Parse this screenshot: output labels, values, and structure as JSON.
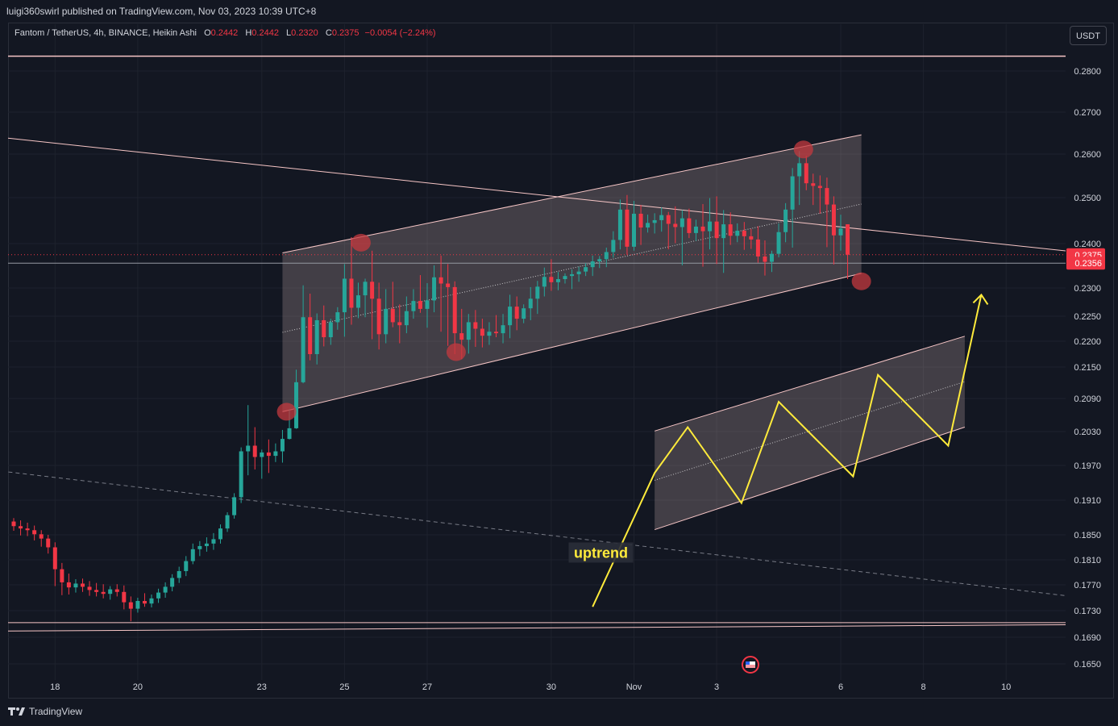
{
  "publisher_line": "luigi360swirl published on TradingView.com, Nov 03, 2023 10:39 UTC+8",
  "legend": {
    "symbol": "Fantom / TetherUS, 4h, BINANCE, Heikin Ashi",
    "o_label": "O",
    "o": "0.2442",
    "h_label": "H",
    "h": "0.2442",
    "l_label": "L",
    "l": "0.2320",
    "c_label": "C",
    "c": "0.2375",
    "change": "−0.0054 (−2.24%)"
  },
  "currency_button": "USDT",
  "brand": "TradingView",
  "annotation": "uptrend",
  "colors": {
    "up": "#26a69a",
    "down": "#f23645",
    "background": "#131722",
    "grid": "#1e222d",
    "channel_fill": "#ffdad8",
    "trendline": "#f7c6c6",
    "projection": "#ffeb3b",
    "highlight": "#c43a3f"
  },
  "chart_data": {
    "type": "candlestick",
    "xlabel": "",
    "ylabel": "",
    "x_ticks": [
      "18",
      "20",
      "23",
      "25",
      "27",
      "30",
      "Nov",
      "3",
      "6",
      "8",
      "10"
    ],
    "y_ticks": [
      "0.2800",
      "0.2700",
      "0.2600",
      "0.2500",
      "0.2400",
      "0.2300",
      "0.2250",
      "0.2200",
      "0.2150",
      "0.2090",
      "0.2030",
      "0.1970",
      "0.1910",
      "0.1850",
      "0.1810",
      "0.1770",
      "0.1730",
      "0.1690",
      "0.1650"
    ],
    "y_tick_values": [
      0.28,
      0.27,
      0.26,
      0.25,
      0.24,
      0.23,
      0.225,
      0.22,
      0.215,
      0.209,
      0.203,
      0.197,
      0.191,
      0.185,
      0.181,
      0.177,
      0.173,
      0.169,
      0.165
    ],
    "price_labels": [
      {
        "text": "0.2375",
        "value": 0.2375,
        "color": "#f23645"
      },
      {
        "text": "0.2356",
        "value": 0.2356,
        "color": "#f23645"
      }
    ],
    "candles": [
      {
        "x": 0.0,
        "open": 0.1873,
        "high": 0.1879,
        "low": 0.1857,
        "close": 0.1865
      },
      {
        "x": 0.167,
        "open": 0.1865,
        "high": 0.1875,
        "low": 0.1849,
        "close": 0.1861
      },
      {
        "x": 0.333,
        "open": 0.1861,
        "high": 0.1871,
        "low": 0.1848,
        "close": 0.1858
      },
      {
        "x": 0.5,
        "open": 0.1858,
        "high": 0.1866,
        "low": 0.1841,
        "close": 0.1851
      },
      {
        "x": 0.667,
        "open": 0.1851,
        "high": 0.1858,
        "low": 0.1831,
        "close": 0.1844
      },
      {
        "x": 0.833,
        "open": 0.1844,
        "high": 0.185,
        "low": 0.182,
        "close": 0.183
      },
      {
        "x": 1.0,
        "open": 0.183,
        "high": 0.1838,
        "low": 0.1768,
        "close": 0.1795
      },
      {
        "x": 1.167,
        "open": 0.1795,
        "high": 0.1805,
        "low": 0.1754,
        "close": 0.1774
      },
      {
        "x": 1.333,
        "open": 0.1774,
        "high": 0.1788,
        "low": 0.1755,
        "close": 0.1766
      },
      {
        "x": 1.5,
        "open": 0.1766,
        "high": 0.1779,
        "low": 0.1758,
        "close": 0.1772
      },
      {
        "x": 1.667,
        "open": 0.1772,
        "high": 0.178,
        "low": 0.1759,
        "close": 0.1767
      },
      {
        "x": 1.833,
        "open": 0.1767,
        "high": 0.1776,
        "low": 0.1753,
        "close": 0.1762
      },
      {
        "x": 2.0,
        "open": 0.1762,
        "high": 0.1773,
        "low": 0.1752,
        "close": 0.1759
      },
      {
        "x": 2.167,
        "open": 0.1759,
        "high": 0.1771,
        "low": 0.1749,
        "close": 0.1756
      },
      {
        "x": 2.333,
        "open": 0.1756,
        "high": 0.1768,
        "low": 0.1747,
        "close": 0.1763
      },
      {
        "x": 2.5,
        "open": 0.1763,
        "high": 0.1771,
        "low": 0.1752,
        "close": 0.1759
      },
      {
        "x": 2.667,
        "open": 0.1759,
        "high": 0.1769,
        "low": 0.1732,
        "close": 0.1743
      },
      {
        "x": 2.833,
        "open": 0.1743,
        "high": 0.1752,
        "low": 0.1714,
        "close": 0.1733
      },
      {
        "x": 3.0,
        "open": 0.1733,
        "high": 0.175,
        "low": 0.1727,
        "close": 0.1745
      },
      {
        "x": 3.167,
        "open": 0.1745,
        "high": 0.1757,
        "low": 0.1736,
        "close": 0.1741
      },
      {
        "x": 3.333,
        "open": 0.1741,
        "high": 0.1755,
        "low": 0.1735,
        "close": 0.1749
      },
      {
        "x": 3.5,
        "open": 0.1749,
        "high": 0.1764,
        "low": 0.1742,
        "close": 0.1758
      },
      {
        "x": 3.667,
        "open": 0.1758,
        "high": 0.1774,
        "low": 0.175,
        "close": 0.1767
      },
      {
        "x": 3.833,
        "open": 0.1767,
        "high": 0.1787,
        "low": 0.176,
        "close": 0.1781
      },
      {
        "x": 4.0,
        "open": 0.1781,
        "high": 0.1799,
        "low": 0.1773,
        "close": 0.1792
      },
      {
        "x": 4.167,
        "open": 0.1792,
        "high": 0.1816,
        "low": 0.1784,
        "close": 0.1808
      },
      {
        "x": 4.333,
        "open": 0.1808,
        "high": 0.1836,
        "low": 0.1803,
        "close": 0.1827
      },
      {
        "x": 4.5,
        "open": 0.1827,
        "high": 0.184,
        "low": 0.1816,
        "close": 0.1832
      },
      {
        "x": 4.667,
        "open": 0.1832,
        "high": 0.1846,
        "low": 0.1823,
        "close": 0.1836
      },
      {
        "x": 4.833,
        "open": 0.1836,
        "high": 0.1853,
        "low": 0.1826,
        "close": 0.1843
      },
      {
        "x": 5.0,
        "open": 0.1843,
        "high": 0.1868,
        "low": 0.1836,
        "close": 0.1861
      },
      {
        "x": 5.167,
        "open": 0.1861,
        "high": 0.1889,
        "low": 0.1855,
        "close": 0.1884
      },
      {
        "x": 5.333,
        "open": 0.1884,
        "high": 0.1922,
        "low": 0.1878,
        "close": 0.1915
      },
      {
        "x": 5.5,
        "open": 0.1915,
        "high": 0.2002,
        "low": 0.1905,
        "close": 0.1995
      },
      {
        "x": 5.667,
        "open": 0.1995,
        "high": 0.2078,
        "low": 0.1953,
        "close": 0.2005
      },
      {
        "x": 5.833,
        "open": 0.2005,
        "high": 0.2038,
        "low": 0.1963,
        "close": 0.1985
      },
      {
        "x": 6.0,
        "open": 0.1985,
        "high": 0.1998,
        "low": 0.1947,
        "close": 0.1993
      },
      {
        "x": 6.167,
        "open": 0.1993,
        "high": 0.2016,
        "low": 0.1957,
        "close": 0.1987
      },
      {
        "x": 6.333,
        "open": 0.1987,
        "high": 0.2009,
        "low": 0.1976,
        "close": 0.1995
      },
      {
        "x": 6.5,
        "open": 0.1995,
        "high": 0.2033,
        "low": 0.1975,
        "close": 0.2017
      },
      {
        "x": 6.667,
        "open": 0.2017,
        "high": 0.2071,
        "low": 0.2016,
        "close": 0.2036
      },
      {
        "x": 6.833,
        "open": 0.2036,
        "high": 0.2145,
        "low": 0.2035,
        "close": 0.2121
      },
      {
        "x": 7.0,
        "open": 0.2121,
        "high": 0.2306,
        "low": 0.2119,
        "close": 0.2248
      },
      {
        "x": 7.167,
        "open": 0.2248,
        "high": 0.229,
        "low": 0.2163,
        "close": 0.2175
      },
      {
        "x": 7.333,
        "open": 0.2175,
        "high": 0.2255,
        "low": 0.2155,
        "close": 0.2242
      },
      {
        "x": 7.5,
        "open": 0.2242,
        "high": 0.2269,
        "low": 0.219,
        "close": 0.2208
      },
      {
        "x": 7.667,
        "open": 0.2208,
        "high": 0.2245,
        "low": 0.2193,
        "close": 0.2238
      },
      {
        "x": 7.833,
        "open": 0.2238,
        "high": 0.2266,
        "low": 0.2223,
        "close": 0.2257
      },
      {
        "x": 8.0,
        "open": 0.2257,
        "high": 0.2354,
        "low": 0.2209,
        "close": 0.2321
      },
      {
        "x": 8.167,
        "open": 0.2321,
        "high": 0.2414,
        "low": 0.2233,
        "close": 0.2265
      },
      {
        "x": 8.333,
        "open": 0.2265,
        "high": 0.2312,
        "low": 0.2246,
        "close": 0.2287
      },
      {
        "x": 8.5,
        "open": 0.2287,
        "high": 0.2321,
        "low": 0.2248,
        "close": 0.2314
      },
      {
        "x": 8.667,
        "open": 0.2314,
        "high": 0.2384,
        "low": 0.2204,
        "close": 0.2281
      },
      {
        "x": 8.833,
        "open": 0.2281,
        "high": 0.2312,
        "low": 0.2184,
        "close": 0.2214
      },
      {
        "x": 9.0,
        "open": 0.2214,
        "high": 0.2298,
        "low": 0.2196,
        "close": 0.2263
      },
      {
        "x": 9.167,
        "open": 0.2263,
        "high": 0.2314,
        "low": 0.2228,
        "close": 0.2238
      },
      {
        "x": 9.333,
        "open": 0.2238,
        "high": 0.2271,
        "low": 0.2196,
        "close": 0.2232
      },
      {
        "x": 9.5,
        "open": 0.2232,
        "high": 0.2285,
        "low": 0.2216,
        "close": 0.2259
      },
      {
        "x": 9.667,
        "open": 0.2259,
        "high": 0.2298,
        "low": 0.2245,
        "close": 0.2277
      },
      {
        "x": 9.833,
        "open": 0.2277,
        "high": 0.2329,
        "low": 0.2256,
        "close": 0.2263
      },
      {
        "x": 10.0,
        "open": 0.2263,
        "high": 0.2311,
        "low": 0.2227,
        "close": 0.2278
      },
      {
        "x": 10.167,
        "open": 0.2278,
        "high": 0.2351,
        "low": 0.2257,
        "close": 0.2324
      },
      {
        "x": 10.333,
        "open": 0.2324,
        "high": 0.2373,
        "low": 0.2219,
        "close": 0.231
      },
      {
        "x": 10.5,
        "open": 0.231,
        "high": 0.2354,
        "low": 0.2191,
        "close": 0.2302
      },
      {
        "x": 10.667,
        "open": 0.2302,
        "high": 0.2315,
        "low": 0.2175,
        "close": 0.2216
      },
      {
        "x": 10.833,
        "open": 0.2216,
        "high": 0.2263,
        "low": 0.2165,
        "close": 0.2203
      },
      {
        "x": 11.0,
        "open": 0.2203,
        "high": 0.2254,
        "low": 0.2176,
        "close": 0.2238
      },
      {
        "x": 11.167,
        "open": 0.2238,
        "high": 0.2261,
        "low": 0.2189,
        "close": 0.2225
      },
      {
        "x": 11.333,
        "open": 0.2225,
        "high": 0.2245,
        "low": 0.2188,
        "close": 0.2211
      },
      {
        "x": 11.5,
        "open": 0.2211,
        "high": 0.2238,
        "low": 0.2193,
        "close": 0.2219
      },
      {
        "x": 11.667,
        "open": 0.2219,
        "high": 0.2252,
        "low": 0.2208,
        "close": 0.2216
      },
      {
        "x": 11.833,
        "open": 0.2216,
        "high": 0.2254,
        "low": 0.2196,
        "close": 0.2232
      },
      {
        "x": 12.0,
        "open": 0.2232,
        "high": 0.2288,
        "low": 0.2206,
        "close": 0.2267
      },
      {
        "x": 12.167,
        "open": 0.2267,
        "high": 0.2285,
        "low": 0.2222,
        "close": 0.2245
      },
      {
        "x": 12.333,
        "open": 0.2245,
        "high": 0.2271,
        "low": 0.2236,
        "close": 0.2264
      },
      {
        "x": 12.5,
        "open": 0.2264,
        "high": 0.2302,
        "low": 0.2242,
        "close": 0.2281
      },
      {
        "x": 12.667,
        "open": 0.2281,
        "high": 0.2316,
        "low": 0.2254,
        "close": 0.2303
      },
      {
        "x": 12.833,
        "open": 0.2303,
        "high": 0.2346,
        "low": 0.2285,
        "close": 0.2325
      },
      {
        "x": 13.0,
        "open": 0.2325,
        "high": 0.2365,
        "low": 0.2295,
        "close": 0.2313
      },
      {
        "x": 13.167,
        "open": 0.2313,
        "high": 0.2336,
        "low": 0.2296,
        "close": 0.232
      },
      {
        "x": 13.333,
        "open": 0.232,
        "high": 0.2333,
        "low": 0.231,
        "close": 0.2327
      },
      {
        "x": 13.5,
        "open": 0.2327,
        "high": 0.2342,
        "low": 0.2298,
        "close": 0.2331
      },
      {
        "x": 13.667,
        "open": 0.2331,
        "high": 0.2348,
        "low": 0.2314,
        "close": 0.2337
      },
      {
        "x": 13.833,
        "open": 0.2337,
        "high": 0.2356,
        "low": 0.2327,
        "close": 0.2347
      },
      {
        "x": 14.0,
        "open": 0.2347,
        "high": 0.2373,
        "low": 0.2327,
        "close": 0.236
      },
      {
        "x": 14.167,
        "open": 0.236,
        "high": 0.2372,
        "low": 0.2345,
        "close": 0.2365
      },
      {
        "x": 14.333,
        "open": 0.2365,
        "high": 0.2391,
        "low": 0.2347,
        "close": 0.2381
      },
      {
        "x": 14.5,
        "open": 0.2381,
        "high": 0.2427,
        "low": 0.2368,
        "close": 0.2408
      },
      {
        "x": 14.667,
        "open": 0.2408,
        "high": 0.2496,
        "low": 0.2387,
        "close": 0.2474
      },
      {
        "x": 14.833,
        "open": 0.2474,
        "high": 0.2506,
        "low": 0.2375,
        "close": 0.2393
      },
      {
        "x": 15.0,
        "open": 0.2393,
        "high": 0.2493,
        "low": 0.2384,
        "close": 0.2465
      },
      {
        "x": 15.167,
        "open": 0.2465,
        "high": 0.2484,
        "low": 0.2397,
        "close": 0.2435
      },
      {
        "x": 15.333,
        "open": 0.2435,
        "high": 0.2463,
        "low": 0.2424,
        "close": 0.2445
      },
      {
        "x": 15.5,
        "open": 0.2445,
        "high": 0.2466,
        "low": 0.2422,
        "close": 0.2451
      },
      {
        "x": 15.667,
        "open": 0.2451,
        "high": 0.2479,
        "low": 0.2426,
        "close": 0.2462
      },
      {
        "x": 15.833,
        "open": 0.2462,
        "high": 0.2469,
        "low": 0.2387,
        "close": 0.2443
      },
      {
        "x": 16.0,
        "open": 0.2443,
        "high": 0.2481,
        "low": 0.2401,
        "close": 0.2436
      },
      {
        "x": 16.167,
        "open": 0.2436,
        "high": 0.2473,
        "low": 0.2351,
        "close": 0.2455
      },
      {
        "x": 16.333,
        "open": 0.2455,
        "high": 0.2476,
        "low": 0.2412,
        "close": 0.2423
      },
      {
        "x": 16.5,
        "open": 0.2423,
        "high": 0.2452,
        "low": 0.2406,
        "close": 0.2437
      },
      {
        "x": 16.667,
        "open": 0.2437,
        "high": 0.2486,
        "low": 0.2348,
        "close": 0.2427
      },
      {
        "x": 16.833,
        "open": 0.2427,
        "high": 0.2499,
        "low": 0.2387,
        "close": 0.2448
      },
      {
        "x": 17.0,
        "open": 0.2448,
        "high": 0.2503,
        "low": 0.2354,
        "close": 0.2412
      },
      {
        "x": 17.167,
        "open": 0.2412,
        "high": 0.2473,
        "low": 0.2334,
        "close": 0.2442
      },
      {
        "x": 17.333,
        "open": 0.2442,
        "high": 0.2468,
        "low": 0.2397,
        "close": 0.2417
      },
      {
        "x": 17.5,
        "open": 0.2417,
        "high": 0.2444,
        "low": 0.2403,
        "close": 0.2428
      },
      {
        "x": 17.667,
        "open": 0.2428,
        "high": 0.2447,
        "low": 0.2386,
        "close": 0.2416
      },
      {
        "x": 17.833,
        "open": 0.2416,
        "high": 0.2432,
        "low": 0.2388,
        "close": 0.2409
      },
      {
        "x": 18.0,
        "open": 0.2409,
        "high": 0.2438,
        "low": 0.2357,
        "close": 0.2371
      },
      {
        "x": 18.167,
        "open": 0.2371,
        "high": 0.2407,
        "low": 0.2328,
        "close": 0.2359
      },
      {
        "x": 18.333,
        "open": 0.2359,
        "high": 0.2384,
        "low": 0.2336,
        "close": 0.2377
      },
      {
        "x": 18.5,
        "open": 0.2377,
        "high": 0.2444,
        "low": 0.2369,
        "close": 0.2425
      },
      {
        "x": 18.667,
        "open": 0.2425,
        "high": 0.2488,
        "low": 0.2403,
        "close": 0.2474
      },
      {
        "x": 18.833,
        "open": 0.2474,
        "high": 0.2568,
        "low": 0.2391,
        "close": 0.2549
      },
      {
        "x": 19.0,
        "open": 0.2549,
        "high": 0.2607,
        "low": 0.2484,
        "close": 0.2579
      },
      {
        "x": 19.167,
        "open": 0.2579,
        "high": 0.2596,
        "low": 0.2517,
        "close": 0.2533
      },
      {
        "x": 19.333,
        "open": 0.2533,
        "high": 0.2555,
        "low": 0.2484,
        "close": 0.2527
      },
      {
        "x": 19.5,
        "open": 0.2527,
        "high": 0.2551,
        "low": 0.2465,
        "close": 0.2522
      },
      {
        "x": 19.667,
        "open": 0.2522,
        "high": 0.2546,
        "low": 0.2392,
        "close": 0.2485
      },
      {
        "x": 19.833,
        "open": 0.2485,
        "high": 0.2503,
        "low": 0.2353,
        "close": 0.2418
      },
      {
        "x": 20.0,
        "open": 0.2418,
        "high": 0.2463,
        "low": 0.2384,
        "close": 0.2433
      },
      {
        "x": 20.167,
        "open": 0.2442,
        "high": 0.2442,
        "low": 0.232,
        "close": 0.2375
      }
    ]
  },
  "drawings": {
    "channel_main": {
      "p1": {
        "x": 6.5,
        "y": 0.2066
      },
      "p2": {
        "x": 20.5,
        "y": 0.2333
      },
      "height": 0.0313
    },
    "channel_projection": {
      "p1": {
        "x": 15.5,
        "y": 0.1859
      },
      "p2": {
        "x": 23.0,
        "y": 0.2038
      },
      "height": 0.0172
    },
    "descending_line": {
      "p1": {
        "x": -1.0,
        "y": 0.2647
      },
      "p2": {
        "x": 26.0,
        "y": 0.2378
      }
    },
    "dashed_line": {
      "p1": {
        "x": -1.0,
        "y": 0.1966
      },
      "p2": {
        "x": 26.0,
        "y": 0.1749
      }
    },
    "top_horizontal": {
      "y": 0.2836
    },
    "price_line_gray": {
      "y": 0.2356
    },
    "bottom_band": [
      {
        "x1": -1.0,
        "y1": 0.1712,
        "x2": 26.0,
        "y2": 0.1712
      },
      {
        "x1": -1.0,
        "y1": 0.1699,
        "x2": 26.0,
        "y2": 0.1709
      }
    ],
    "zigzag": [
      {
        "x": 14.0,
        "y": 0.1736
      },
      {
        "x": 15.5,
        "y": 0.1957
      },
      {
        "x": 16.3,
        "y": 0.2038
      },
      {
        "x": 17.6,
        "y": 0.1905
      },
      {
        "x": 18.5,
        "y": 0.2084
      },
      {
        "x": 20.3,
        "y": 0.1951
      },
      {
        "x": 20.9,
        "y": 0.2135
      },
      {
        "x": 22.6,
        "y": 0.2005
      },
      {
        "x": 23.4,
        "y": 0.2288
      }
    ],
    "highlights": [
      {
        "x": 6.6,
        "y": 0.2066
      },
      {
        "x": 8.4,
        "y": 0.2402
      },
      {
        "x": 10.7,
        "y": 0.2179
      },
      {
        "x": 19.1,
        "y": 0.2611
      },
      {
        "x": 20.5,
        "y": 0.2315
      }
    ]
  }
}
